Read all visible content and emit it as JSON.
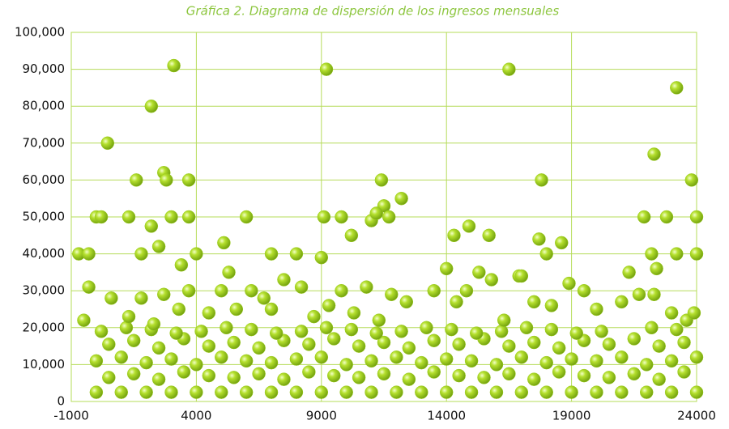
{
  "chart_data": {
    "type": "scatter",
    "title": "Gráfica 2. Diagrama de dispersión de los ingresos mensuales",
    "color": "#9ccc1f",
    "grid": true,
    "xlim": [
      -1000,
      24000
    ],
    "xticks": [
      -1000,
      4000,
      9000,
      14000,
      19000,
      24000
    ],
    "ylim": [
      0,
      100000
    ],
    "yticks": [
      0,
      {
        "value": 10000,
        "label": "10,000"
      },
      {
        "value": 20000,
        "label": "20,000"
      },
      {
        "value": 30000,
        "label": "30,000"
      },
      {
        "value": 40000,
        "label": "40,000"
      },
      {
        "value": 50000,
        "label": "50,000"
      },
      {
        "value": 60000,
        "label": "60,000"
      },
      {
        "value": 70000,
        "label": "70,000"
      },
      {
        "value": 80000,
        "label": "80,000"
      },
      {
        "value": 90000,
        "label": "90,000"
      },
      {
        "value": 100000,
        "label": "100,000"
      }
    ],
    "x": [
      0,
      1000,
      2000,
      3000,
      4000,
      5000,
      6000,
      7000,
      8000,
      9000,
      10000,
      11000,
      12000,
      13000,
      14000,
      15000,
      16000,
      17000,
      18000,
      19000,
      20000,
      21000,
      22000,
      23000,
      24000,
      500,
      1500,
      2500,
      3500,
      4500,
      5500,
      6500,
      7500,
      8500,
      9500,
      10500,
      11500,
      12500,
      13500,
      14500,
      15500,
      16500,
      17500,
      18500,
      19500,
      20500,
      21500,
      22500,
      23500,
      0,
      1000,
      2000,
      3000,
      4000,
      5000,
      6000,
      7000,
      8000,
      9000,
      10000,
      11000,
      12000,
      13000,
      14000,
      15000,
      16000,
      17000,
      18000,
      19000,
      20000,
      21000,
      22000,
      23000,
      24000,
      500,
      1500,
      2500,
      3500,
      4500,
      5500,
      6500,
      7500,
      8500,
      9500,
      10500,
      11500,
      12500,
      13500,
      14500,
      15500,
      16500,
      17500,
      18500,
      19500,
      20500,
      21500,
      22500,
      23500,
      200,
      1200,
      2200,
      3200,
      4200,
      5200,
      6200,
      7200,
      8200,
      9200,
      10200,
      11200,
      12200,
      13200,
      14200,
      15200,
      16200,
      17200,
      18200,
      19200,
      20200,
      22200,
      23200,
      -500,
      -300,
      600,
      1300,
      1800,
      2300,
      2700,
      3300,
      3700,
      4500,
      5000,
      5300,
      5600,
      6200,
      6700,
      7000,
      7500,
      8200,
      8700,
      9300,
      9800,
      10300,
      10800,
      11300,
      11800,
      12400,
      13500,
      14000,
      14400,
      14800,
      15300,
      15800,
      16300,
      16900,
      17500,
      18200,
      18900,
      19500,
      20000,
      21000,
      21700,
      22300,
      23000,
      23600,
      23900,
      -700,
      -300,
      0,
      450,
      200,
      1300,
      1600,
      1800,
      2200,
      2200,
      2700,
      2800,
      2500,
      3100,
      3000,
      3700,
      3700,
      3400,
      4000,
      5100,
      6000,
      7000,
      8000,
      9000,
      9200,
      9100,
      9800,
      10200,
      11000,
      11500,
      11200,
      11400,
      11700,
      12200,
      14300,
      14900,
      15700,
      16500,
      17000,
      17800,
      17700,
      18000,
      18600,
      21300,
      21900,
      22300,
      22200,
      22800,
      23200,
      23200,
      23800,
      24000,
      24000,
      22400
    ],
    "values": [
      2500,
      2500,
      2500,
      2500,
      2500,
      2500,
      2500,
      2500,
      2500,
      2500,
      2500,
      2500,
      2500,
      2500,
      2500,
      2500,
      2500,
      2500,
      2500,
      2500,
      2500,
      2500,
      2500,
      2500,
      2500,
      6500,
      7500,
      6000,
      8000,
      7000,
      6500,
      7500,
      6000,
      8000,
      7000,
      6500,
      7500,
      6000,
      8000,
      7000,
      6500,
      7500,
      6000,
      8000,
      7000,
      6500,
      7500,
      6000,
      8000,
      11000,
      12000,
      10500,
      11500,
      10000,
      12000,
      11000,
      10500,
      11500,
      12000,
      10000,
      11000,
      12000,
      10500,
      11500,
      11000,
      10000,
      12000,
      10500,
      11500,
      11000,
      12000,
      10000,
      11000,
      12000,
      15500,
      16500,
      14500,
      17000,
      15000,
      16000,
      14500,
      16500,
      15500,
      17000,
      15000,
      16000,
      14500,
      16500,
      15500,
      17000,
      15000,
      16000,
      14500,
      16500,
      15500,
      17000,
      15000,
      16000,
      19000,
      20000,
      19500,
      18500,
      19000,
      20000,
      19500,
      18500,
      19000,
      20000,
      19500,
      18500,
      19000,
      20000,
      19500,
      18500,
      19000,
      20000,
      19500,
      18500,
      19000,
      20000,
      19500,
      22000,
      31000,
      28000,
      23000,
      28000,
      21000,
      29000,
      25000,
      30000,
      24000,
      30000,
      35000,
      25000,
      30000,
      28000,
      25000,
      33000,
      31000,
      23000,
      26000,
      30000,
      24000,
      31000,
      22000,
      29000,
      27000,
      30000,
      36000,
      27000,
      30000,
      35000,
      33000,
      22000,
      34000,
      27000,
      26000,
      32000,
      30000,
      25000,
      27000,
      29000,
      29000,
      24000,
      22000,
      24000,
      40000,
      40000,
      50000,
      70000,
      50000,
      50000,
      60000,
      40000,
      80000,
      47500,
      62000,
      60000,
      42000,
      91000,
      50000,
      50000,
      60000,
      37000,
      40000,
      43000,
      50000,
      40000,
      40000,
      39000,
      90000,
      50000,
      50000,
      45000,
      49000,
      53000,
      51000,
      60000,
      50000,
      55000,
      45000,
      47500,
      45000,
      90000,
      34000,
      60000,
      44000,
      40000,
      43000,
      35000,
      50000,
      67000,
      40000,
      50000,
      85000,
      40000,
      60000,
      50000,
      40000,
      36000
    ]
  }
}
